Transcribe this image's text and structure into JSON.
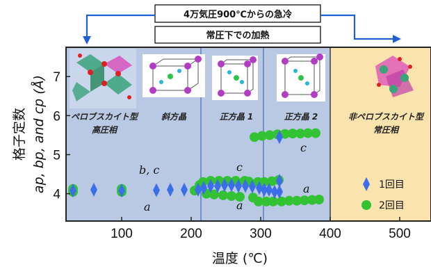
{
  "banner": {
    "top_label": "4万気圧900℃からの急冷",
    "bottom_label": "常圧下での加熱"
  },
  "chart_data": {
    "type": "scatter",
    "xlabel": "温度 (℃)",
    "ylabel_line1": "格子定数",
    "ylabel_line2": "ap, bp, and cp (Å)",
    "xlim": [
      20,
      545
    ],
    "ylim": [
      3.3,
      7.75
    ],
    "x_ticks": [
      100,
      200,
      300,
      400,
      500
    ],
    "y_ticks": [
      4,
      5,
      6,
      7
    ],
    "regions": [
      {
        "label_lines": [
          "ペロブスカイト型",
          "高圧相"
        ],
        "x_range": [
          20,
          214
        ],
        "color": "#b9c8e3"
      },
      {
        "label_lines": [
          "斜方晶"
        ],
        "color": "#b9c8e3"
      },
      {
        "label_lines": [
          "正方晶 1"
        ],
        "x_range": [
          214,
          304
        ],
        "color": "#b9c8e3"
      },
      {
        "label_lines": [
          "正方晶 2"
        ],
        "x_range": [
          304,
          400
        ],
        "color": "#b9c8e3"
      },
      {
        "label_lines": [
          "非ペロブスカイト型",
          "常圧相"
        ],
        "x_range": [
          400,
          545
        ],
        "color": "#fbe3ae"
      }
    ],
    "curve_labels": [
      "b, c",
      "a",
      "c",
      "a",
      "c",
      "a"
    ],
    "legend": [
      {
        "label": "1回目",
        "marker": "diamond",
        "color": "#3b6ee8"
      },
      {
        "label": "2回目",
        "marker": "circle",
        "color": "#33c233"
      }
    ],
    "series": [
      {
        "name": "2回目",
        "marker": "circle",
        "color": "#33c233",
        "points": [
          [
            30,
            4.12
          ],
          [
            30,
            4.05
          ],
          [
            100,
            4.12
          ],
          [
            100,
            4.05
          ],
          [
            205,
            4.08
          ],
          [
            212,
            4.22
          ],
          [
            217,
            4.3
          ],
          [
            222,
            4.0
          ],
          [
            228,
            4.33
          ],
          [
            233,
            3.98
          ],
          [
            240,
            4.33
          ],
          [
            246,
            3.96
          ],
          [
            252,
            4.33
          ],
          [
            258,
            3.94
          ],
          [
            264,
            4.33
          ],
          [
            270,
            3.92
          ],
          [
            277,
            4.33
          ],
          [
            283,
            4.31
          ],
          [
            289,
            3.9
          ],
          [
            291,
            5.45
          ],
          [
            296,
            4.3
          ],
          [
            297,
            3.8
          ],
          [
            302,
            5.48
          ],
          [
            305,
            4.3
          ],
          [
            308,
            3.8
          ],
          [
            313,
            5.5
          ],
          [
            316,
            4.32
          ],
          [
            318,
            3.8
          ],
          [
            324,
            5.52
          ],
          [
            326,
            4.35
          ],
          [
            330,
            3.8
          ],
          [
            335,
            5.53
          ],
          [
            341,
            3.82
          ],
          [
            346,
            5.54
          ],
          [
            352,
            3.82
          ],
          [
            357,
            5.54
          ],
          [
            363,
            3.83
          ],
          [
            368,
            5.55
          ],
          [
            374,
            3.84
          ],
          [
            379,
            5.55
          ],
          [
            384,
            3.85
          ]
        ]
      },
      {
        "name": "1回目",
        "marker": "diamond",
        "color": "#3b6ee8",
        "points": [
          [
            30,
            4.08
          ],
          [
            60,
            4.1
          ],
          [
            100,
            4.08
          ],
          [
            150,
            4.09
          ],
          [
            170,
            4.1
          ],
          [
            190,
            4.1
          ],
          [
            210,
            4.1
          ],
          [
            218,
            4.15
          ],
          [
            228,
            4.2
          ],
          [
            238,
            4.2
          ],
          [
            248,
            4.22
          ],
          [
            258,
            4.22
          ],
          [
            268,
            4.2
          ],
          [
            278,
            4.2
          ],
          [
            288,
            4.18
          ],
          [
            298,
            4.15
          ],
          [
            305,
            4.1
          ],
          [
            312,
            4.1
          ],
          [
            320,
            4.05
          ],
          [
            327,
            4.33
          ],
          [
            327,
            5.45
          ],
          [
            327,
            4.05
          ]
        ]
      }
    ]
  }
}
